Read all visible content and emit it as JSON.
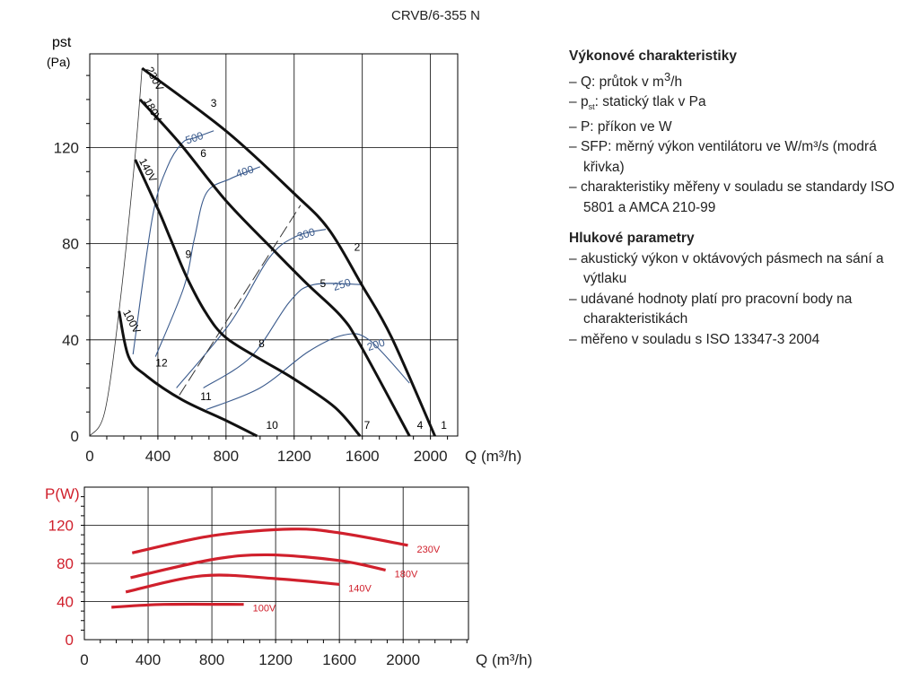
{
  "title": "CRVB/6-355 N",
  "sections": [
    {
      "heading": "Výkonové charakteristiky",
      "items": [
        "Q: průtok v m³/h",
        "pst: statický tlak v Pa",
        "P: příkon ve W",
        "SFP: měrný výkon ventilátoru ve W/m³/s (modrá křivka)",
        "charakteristiky měřeny v souladu se standardy ISO 5801 a AMCA 210-99"
      ]
    },
    {
      "heading": "Hlukové parametry",
      "items": [
        "akustický výkon v oktávových pásmech na sání a výtlaku",
        "udávané hodnoty platí pro pracovní body na charakteristikách",
        "měřeno v souladu s ISO 13347-3 2004"
      ]
    }
  ],
  "colors": {
    "curve": "#111111",
    "sfp": "#3a5a8c",
    "power": "#d0202c",
    "grid": "#000000"
  },
  "chart_data": [
    {
      "type": "line",
      "title": "",
      "ylabel": "pst",
      "yunit": "(Pa)",
      "xlabel": "Q (m³/h)",
      "xlim": [
        0,
        2160
      ],
      "ylim": [
        0,
        159
      ],
      "xticks": [
        0,
        400,
        800,
        1200,
        1600,
        2000
      ],
      "yticks": [
        0,
        40,
        80,
        120
      ],
      "grid": true,
      "series": [
        {
          "name": "230V",
          "points": [
            [
              307,
              153
            ],
            [
              798,
              127
            ],
            [
              1198,
              101
            ],
            [
              1403,
              86
            ],
            [
              1596,
              63
            ],
            [
              1772,
              41
            ],
            [
              2026,
              0
            ]
          ]
        },
        {
          "name": "180V",
          "points": [
            [
              295,
              140
            ],
            [
              526,
              122
            ],
            [
              798,
              98
            ],
            [
              1070,
              78
            ],
            [
              1280,
              63
            ],
            [
              1473,
              50
            ],
            [
              1587,
              38
            ],
            [
              1877,
              0
            ]
          ]
        },
        {
          "name": "140V",
          "points": [
            [
              267,
              115
            ],
            [
              403,
              94
            ],
            [
              474,
              82
            ],
            [
              570,
              66
            ],
            [
              684,
              51
            ],
            [
              798,
              41
            ],
            [
              1000,
              32
            ],
            [
              1193,
              24
            ],
            [
              1438,
              12
            ],
            [
              1587,
              0
            ]
          ]
        },
        {
          "name": "100V",
          "points": [
            [
              172,
              52
            ],
            [
              228,
              33
            ],
            [
              333,
              25
            ],
            [
              544,
              15
            ],
            [
              798,
              6.5
            ],
            [
              982,
              0
            ]
          ]
        }
      ],
      "limit_curve": [
        [
          0,
          0
        ],
        [
          88,
          10
        ],
        [
          172,
          52
        ],
        [
          263,
          114
        ],
        [
          307,
          153
        ]
      ],
      "sfp_curves": [
        {
          "name": "500",
          "label_at": [
            614,
            124
          ],
          "points": [
            [
              254,
              34
            ],
            [
              368,
              91
            ],
            [
              456,
              112
            ],
            [
              544,
              122
            ],
            [
              614,
              124
            ],
            [
              728,
              127
            ]
          ]
        },
        {
          "name": "400",
          "label_at": [
            910,
            110
          ],
          "points": [
            [
              386,
              33
            ],
            [
              553,
              62
            ],
            [
              614,
              82
            ],
            [
              684,
              101
            ],
            [
              824,
              107
            ],
            [
              1000,
              112
            ]
          ]
        },
        {
          "name": "300",
          "label_at": [
            1270,
            84
          ],
          "points": [
            [
              509,
              20
            ],
            [
              824,
              47
            ],
            [
              1052,
              74
            ],
            [
              1210,
              83
            ],
            [
              1386,
              86
            ]
          ]
        },
        {
          "name": "250",
          "label_at": [
            1480,
            63
          ],
          "points": [
            [
              667,
              20
            ],
            [
              947,
              33
            ],
            [
              1175,
              56
            ],
            [
              1316,
              63
            ],
            [
              1596,
              63
            ]
          ]
        },
        {
          "name": "200",
          "label_at": [
            1680,
            38
          ],
          "points": [
            [
              684,
              11
            ],
            [
              1000,
              20
            ],
            [
              1281,
              35
            ],
            [
              1491,
              42
            ],
            [
              1640,
              40
            ],
            [
              1877,
              22
            ]
          ]
        }
      ],
      "dashed_line": [
        [
          526,
          17
        ],
        [
          1237,
          96
        ]
      ],
      "point_labels": [
        {
          "t": "1",
          "q": 2061,
          "p": 3
        },
        {
          "t": "2",
          "q": 1552,
          "p": 77
        },
        {
          "t": "3",
          "q": 710,
          "p": 137
        },
        {
          "t": "4",
          "q": 1921,
          "p": 3
        },
        {
          "t": "5",
          "q": 1351,
          "p": 62
        },
        {
          "t": "6",
          "q": 649,
          "p": 116
        },
        {
          "t": "7",
          "q": 1610,
          "p": 3
        },
        {
          "t": "8",
          "q": 991,
          "p": 37
        },
        {
          "t": "9",
          "q": 561,
          "p": 74
        },
        {
          "t": "10",
          "q": 1035,
          "p": 3
        },
        {
          "t": "11",
          "q": 649,
          "p": 15
        },
        {
          "t": "12",
          "q": 386,
          "p": 29
        }
      ]
    },
    {
      "type": "line",
      "title": "",
      "ylabel": "P(W)",
      "xlabel": "Q (m³/h)",
      "xlim": [
        0,
        2410
      ],
      "ylim": [
        0,
        160
      ],
      "xticks": [
        0,
        400,
        800,
        1200,
        1600,
        2000
      ],
      "yticks": [
        0,
        40,
        80,
        120
      ],
      "grid": true,
      "series": [
        {
          "name": "230V",
          "points": [
            [
              300,
              91
            ],
            [
              800,
              109
            ],
            [
              1300,
              116
            ],
            [
              1600,
              112
            ],
            [
              2030,
              99
            ]
          ]
        },
        {
          "name": "180V",
          "points": [
            [
              290,
              65
            ],
            [
              800,
              84
            ],
            [
              1150,
              89
            ],
            [
              1600,
              83
            ],
            [
              1890,
              73
            ]
          ]
        },
        {
          "name": "140V",
          "points": [
            [
              260,
              50
            ],
            [
              740,
              67
            ],
            [
              1200,
              64
            ],
            [
              1600,
              58
            ]
          ]
        },
        {
          "name": "100V",
          "points": [
            [
              170,
              34
            ],
            [
              500,
              37
            ],
            [
              1000,
              37
            ]
          ]
        }
      ]
    }
  ]
}
